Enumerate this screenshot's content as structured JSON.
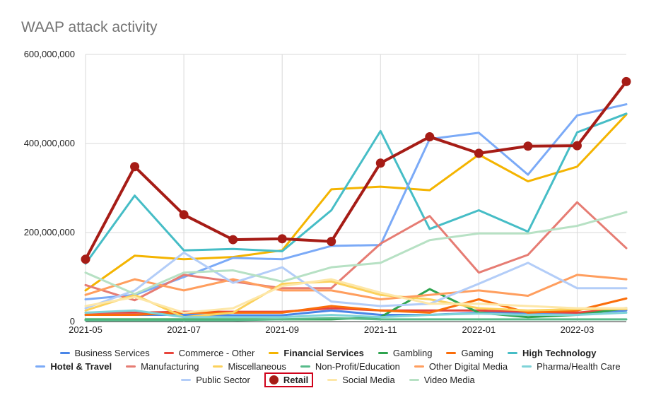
{
  "chart_data": {
    "type": "line",
    "title": "WAAP attack activity",
    "x": [
      "2021-05",
      "2021-06",
      "2021-07",
      "2021-08",
      "2021-09",
      "2021-10",
      "2021-11",
      "2021-12",
      "2022-01",
      "2022-02",
      "2022-03",
      "2022-04"
    ],
    "x_tick_labels": [
      "2021-05",
      "2021-07",
      "2021-09",
      "2021-11",
      "2022-01",
      "2022-03"
    ],
    "y_tick_labels": [
      "0",
      "200,000,000",
      "400,000,000",
      "600,000,000"
    ],
    "ylim": [
      0,
      600000000
    ],
    "grid": true,
    "legend_position": "bottom",
    "series": [
      {
        "name": "Business Services",
        "color": "#4a86e8",
        "bold": false,
        "values": [
          15000000,
          15000000,
          15000000,
          14000000,
          14000000,
          25000000,
          15000000,
          15000000,
          20000000,
          20000000,
          20000000,
          25000000
        ]
      },
      {
        "name": "Commerce - Other",
        "color": "#e8453c",
        "bold": false,
        "values": [
          20000000,
          20000000,
          22000000,
          22000000,
          22000000,
          30000000,
          25000000,
          25000000,
          25000000,
          22000000,
          20000000,
          30000000
        ]
      },
      {
        "name": "Financial Services",
        "color": "#f4b400",
        "bold": true,
        "values": [
          70000000,
          148000000,
          140000000,
          145000000,
          160000000,
          297000000,
          303000000,
          295000000,
          375000000,
          315000000,
          348000000,
          465000000
        ]
      },
      {
        "name": "Gambling",
        "color": "#2ea44f",
        "bold": false,
        "values": [
          5000000,
          5000000,
          5000000,
          5000000,
          5000000,
          5000000,
          10000000,
          73000000,
          20000000,
          10000000,
          15000000,
          30000000
        ]
      },
      {
        "name": "Gaming",
        "color": "#fa6d0a",
        "bold": false,
        "values": [
          15000000,
          15000000,
          20000000,
          20000000,
          20000000,
          35000000,
          25000000,
          20000000,
          50000000,
          20000000,
          25000000,
          52000000
        ]
      },
      {
        "name": "High Technology",
        "color": "#46bdc6",
        "bold": true,
        "values": [
          130000000,
          283000000,
          160000000,
          163000000,
          158000000,
          250000000,
          428000000,
          208000000,
          250000000,
          202000000,
          425000000,
          467000000
        ]
      },
      {
        "name": "Hotel & Travel",
        "color": "#7baaf7",
        "bold": true,
        "values": [
          50000000,
          60000000,
          100000000,
          143000000,
          140000000,
          170000000,
          172000000,
          410000000,
          424000000,
          330000000,
          463000000,
          488000000
        ]
      },
      {
        "name": "Manufacturing",
        "color": "#e67c73",
        "bold": false,
        "values": [
          82000000,
          48000000,
          105000000,
          90000000,
          75000000,
          75000000,
          175000000,
          237000000,
          110000000,
          150000000,
          268000000,
          165000000
        ]
      },
      {
        "name": "Miscellaneous",
        "color": "#fbd15c",
        "bold": false,
        "values": [
          25000000,
          60000000,
          10000000,
          20000000,
          85000000,
          90000000,
          60000000,
          50000000,
          30000000,
          25000000,
          28000000,
          28000000
        ]
      },
      {
        "name": "Non-Profit/Education",
        "color": "#57bb8a",
        "bold": false,
        "values": [
          3000000,
          3000000,
          3000000,
          3000000,
          5000000,
          8000000,
          5000000,
          5000000,
          5000000,
          5000000,
          5000000,
          5000000
        ]
      },
      {
        "name": "Other Digital Media",
        "color": "#ff9e5e",
        "bold": false,
        "values": [
          60000000,
          95000000,
          70000000,
          95000000,
          70000000,
          70000000,
          50000000,
          60000000,
          70000000,
          58000000,
          105000000,
          95000000
        ]
      },
      {
        "name": "Pharma/Health Care",
        "color": "#7fd3d8",
        "bold": false,
        "values": [
          20000000,
          25000000,
          10000000,
          10000000,
          10000000,
          15000000,
          10000000,
          15000000,
          18000000,
          15000000,
          15000000,
          20000000
        ]
      },
      {
        "name": "Public Sector",
        "color": "#b3cdf8",
        "bold": false,
        "values": [
          30000000,
          70000000,
          155000000,
          87000000,
          122000000,
          45000000,
          35000000,
          40000000,
          85000000,
          132000000,
          75000000,
          75000000
        ]
      },
      {
        "name": "Retail",
        "color": "#a61c16",
        "bold": true,
        "marker": true,
        "values": [
          140000000,
          348000000,
          240000000,
          184000000,
          186000000,
          180000000,
          356000000,
          415000000,
          378000000,
          394000000,
          395000000,
          539000000
        ]
      },
      {
        "name": "Social Media",
        "color": "#fde7a8",
        "bold": false,
        "values": [
          35000000,
          55000000,
          20000000,
          30000000,
          80000000,
          95000000,
          65000000,
          40000000,
          40000000,
          35000000,
          30000000,
          30000000
        ]
      },
      {
        "name": "Video Media",
        "color": "#b7e1c4",
        "bold": false,
        "values": [
          110000000,
          62000000,
          110000000,
          115000000,
          90000000,
          122000000,
          132000000,
          183000000,
          198000000,
          198000000,
          215000000,
          246000000
        ]
      }
    ],
    "highlighted_legend_entry": "Retail"
  }
}
